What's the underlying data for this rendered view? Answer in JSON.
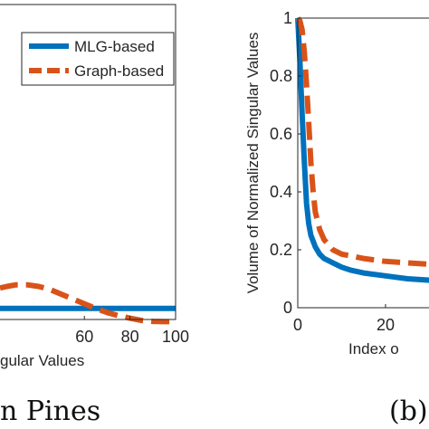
{
  "chart_data": [
    {
      "type": "line",
      "xlabel": "gular Values",
      "ylabel": "",
      "caption": "n Pines",
      "xlim": [
        23,
        100
      ],
      "ylim": [
        0,
        1
      ],
      "xticks": [
        {
          "value": 60,
          "label": "60"
        },
        {
          "value": 80,
          "label": "80"
        },
        {
          "value": 100,
          "label": "100"
        }
      ],
      "yticks": [],
      "grid": false,
      "legend": "top-right",
      "series": [
        {
          "name": "MLG-based",
          "color": "#0072BD",
          "style": "solid",
          "x": [
            23,
            30,
            40,
            50,
            60,
            70,
            80,
            90,
            100
          ],
          "y": [
            0.035,
            0.035,
            0.035,
            0.035,
            0.035,
            0.035,
            0.035,
            0.035,
            0.035
          ]
        },
        {
          "name": "Graph-based",
          "color": "#D95319",
          "style": "dashed",
          "x": [
            23,
            26,
            30,
            35,
            40,
            45,
            50,
            55,
            60,
            65,
            70,
            75,
            80,
            85,
            90,
            95,
            100
          ],
          "y": [
            0.1,
            0.105,
            0.11,
            0.11,
            0.105,
            0.095,
            0.08,
            0.065,
            0.05,
            0.035,
            0.022,
            0.012,
            0.004,
            -0.003,
            -0.006,
            -0.007,
            -0.007
          ]
        }
      ]
    },
    {
      "type": "line",
      "xlabel": "Index o",
      "ylabel": "Volume of Normalized Singular Values",
      "caption": "(b)",
      "xlim": [
        0,
        33
      ],
      "ylim": [
        0,
        1
      ],
      "xticks": [
        {
          "value": 0,
          "label": "0"
        },
        {
          "value": 20,
          "label": "20"
        }
      ],
      "yticks": [
        {
          "value": 0,
          "label": "0"
        },
        {
          "value": 0.2,
          "label": "0.2"
        },
        {
          "value": 0.4,
          "label": "0.4"
        },
        {
          "value": 0.6,
          "label": "0.6"
        },
        {
          "value": 0.8,
          "label": "0.8"
        },
        {
          "value": 1,
          "label": "1"
        }
      ],
      "grid": false,
      "series": [
        {
          "name": "MLG-based",
          "color": "#0072BD",
          "style": "solid",
          "x": [
            0,
            0.5,
            1,
            1.5,
            2,
            2.5,
            3,
            4,
            5,
            6,
            8,
            10,
            12,
            15,
            20,
            25,
            30,
            33
          ],
          "y": [
            1,
            0.85,
            0.67,
            0.5,
            0.36,
            0.29,
            0.25,
            0.21,
            0.185,
            0.17,
            0.155,
            0.14,
            0.13,
            0.12,
            0.11,
            0.1,
            0.095,
            0.09
          ]
        },
        {
          "name": "Graph-based",
          "color": "#D95319",
          "style": "dashed",
          "x": [
            0,
            0.5,
            1,
            1.5,
            2,
            2.5,
            3,
            3.5,
            4,
            5,
            6,
            8,
            10,
            15,
            20,
            25,
            30,
            33
          ],
          "y": [
            1,
            0.99,
            0.96,
            0.88,
            0.77,
            0.64,
            0.5,
            0.4,
            0.33,
            0.27,
            0.235,
            0.2,
            0.185,
            0.17,
            0.16,
            0.155,
            0.15,
            0.145
          ]
        }
      ]
    }
  ]
}
